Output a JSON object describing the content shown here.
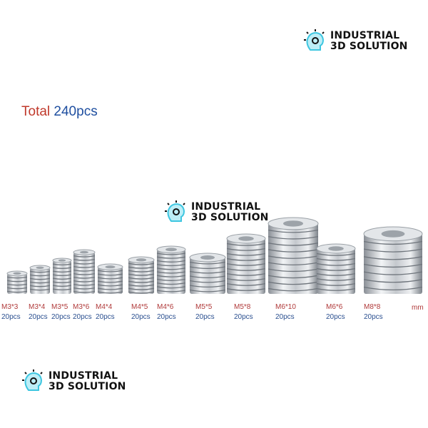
{
  "logo": {
    "line1": "INDUSTRIAL",
    "line2": "3D SOLUTION",
    "icon": "lightbulb-gear-icon",
    "accent": "#3ec6e0"
  },
  "total": {
    "label": "Total",
    "value": "240pcs",
    "label_color": "#c0392b",
    "value_color": "#1f4fa0"
  },
  "unit": "mm",
  "items": [
    {
      "size": "M3*3",
      "qty": "20pcs"
    },
    {
      "size": "M3*4",
      "qty": "20pcs"
    },
    {
      "size": "M3*5",
      "qty": "20pcs"
    },
    {
      "size": "M3*6",
      "qty": "20pcs"
    },
    {
      "size": "M4*4",
      "qty": "20pcs"
    },
    {
      "size": "M4*5",
      "qty": "20pcs"
    },
    {
      "size": "M4*6",
      "qty": "20pcs"
    },
    {
      "size": "M5*5",
      "qty": "20pcs"
    },
    {
      "size": "M5*8",
      "qty": "20pcs"
    },
    {
      "size": "M6*10",
      "qty": "20pcs"
    },
    {
      "size": "M6*6",
      "qty": "20pcs"
    },
    {
      "size": "M8*8",
      "qty": "20pcs"
    }
  ]
}
